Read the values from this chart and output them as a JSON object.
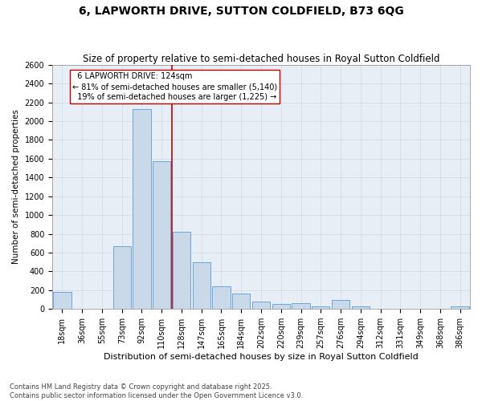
{
  "title": "6, LAPWORTH DRIVE, SUTTON COLDFIELD, B73 6QG",
  "subtitle": "Size of property relative to semi-detached houses in Royal Sutton Coldfield",
  "xlabel": "Distribution of semi-detached houses by size in Royal Sutton Coldfield",
  "ylabel": "Number of semi-detached properties",
  "categories": [
    "18sqm",
    "36sqm",
    "55sqm",
    "73sqm",
    "92sqm",
    "110sqm",
    "128sqm",
    "147sqm",
    "165sqm",
    "184sqm",
    "202sqm",
    "220sqm",
    "239sqm",
    "257sqm",
    "276sqm",
    "294sqm",
    "312sqm",
    "331sqm",
    "349sqm",
    "368sqm",
    "386sqm"
  ],
  "values": [
    180,
    0,
    0,
    670,
    2130,
    1570,
    820,
    500,
    240,
    160,
    75,
    50,
    60,
    30,
    100,
    30,
    0,
    0,
    0,
    0,
    30
  ],
  "bar_color": "#c9d9ea",
  "bar_edge_color": "#5b9bd5",
  "marker_label": "6 LAPWORTH DRIVE: 124sqm",
  "pct_smaller": 81,
  "n_smaller": 5140,
  "pct_larger": 19,
  "n_larger": 1225,
  "marker_line_color": "#c00000",
  "ylim": [
    0,
    2600
  ],
  "yticks": [
    0,
    200,
    400,
    600,
    800,
    1000,
    1200,
    1400,
    1600,
    1800,
    2000,
    2200,
    2400,
    2600
  ],
  "background_color": "#ffffff",
  "grid_color": "#d0d8e8",
  "footer": "Contains HM Land Registry data © Crown copyright and database right 2025.\nContains public sector information licensed under the Open Government Licence v3.0.",
  "title_fontsize": 10,
  "subtitle_fontsize": 8.5,
  "xlabel_fontsize": 8,
  "ylabel_fontsize": 7.5,
  "tick_fontsize": 7,
  "footer_fontsize": 6,
  "annotation_fontsize": 7
}
